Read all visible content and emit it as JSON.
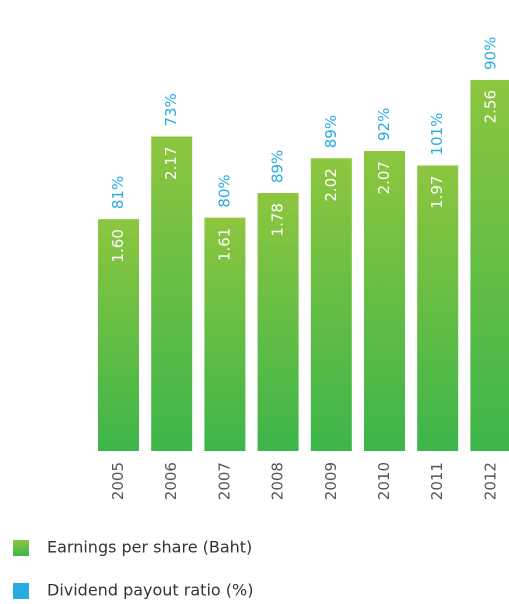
{
  "chart_data": {
    "type": "bar",
    "categories": [
      "2005",
      "2006",
      "2007",
      "2008",
      "2009",
      "2010",
      "2011",
      "2012"
    ],
    "series": [
      {
        "name": "Earnings per share (Baht)",
        "color": "#6cbf43",
        "values": [
          1.6,
          2.17,
          1.61,
          1.78,
          2.02,
          2.07,
          1.97,
          2.56
        ],
        "value_labels": [
          "1.60",
          "2.17",
          "1.61",
          "1.78",
          "2.02",
          "2.07",
          "1.97",
          "2.56"
        ]
      },
      {
        "name": "Dividend payout ratio (%)",
        "color": "#29abe2",
        "values": [
          81,
          73,
          80,
          89,
          89,
          92,
          101,
          90
        ],
        "value_labels": [
          "81%",
          "73%",
          "80%",
          "89%",
          "89%",
          "92%",
          "101%",
          "90%"
        ]
      }
    ]
  }
}
